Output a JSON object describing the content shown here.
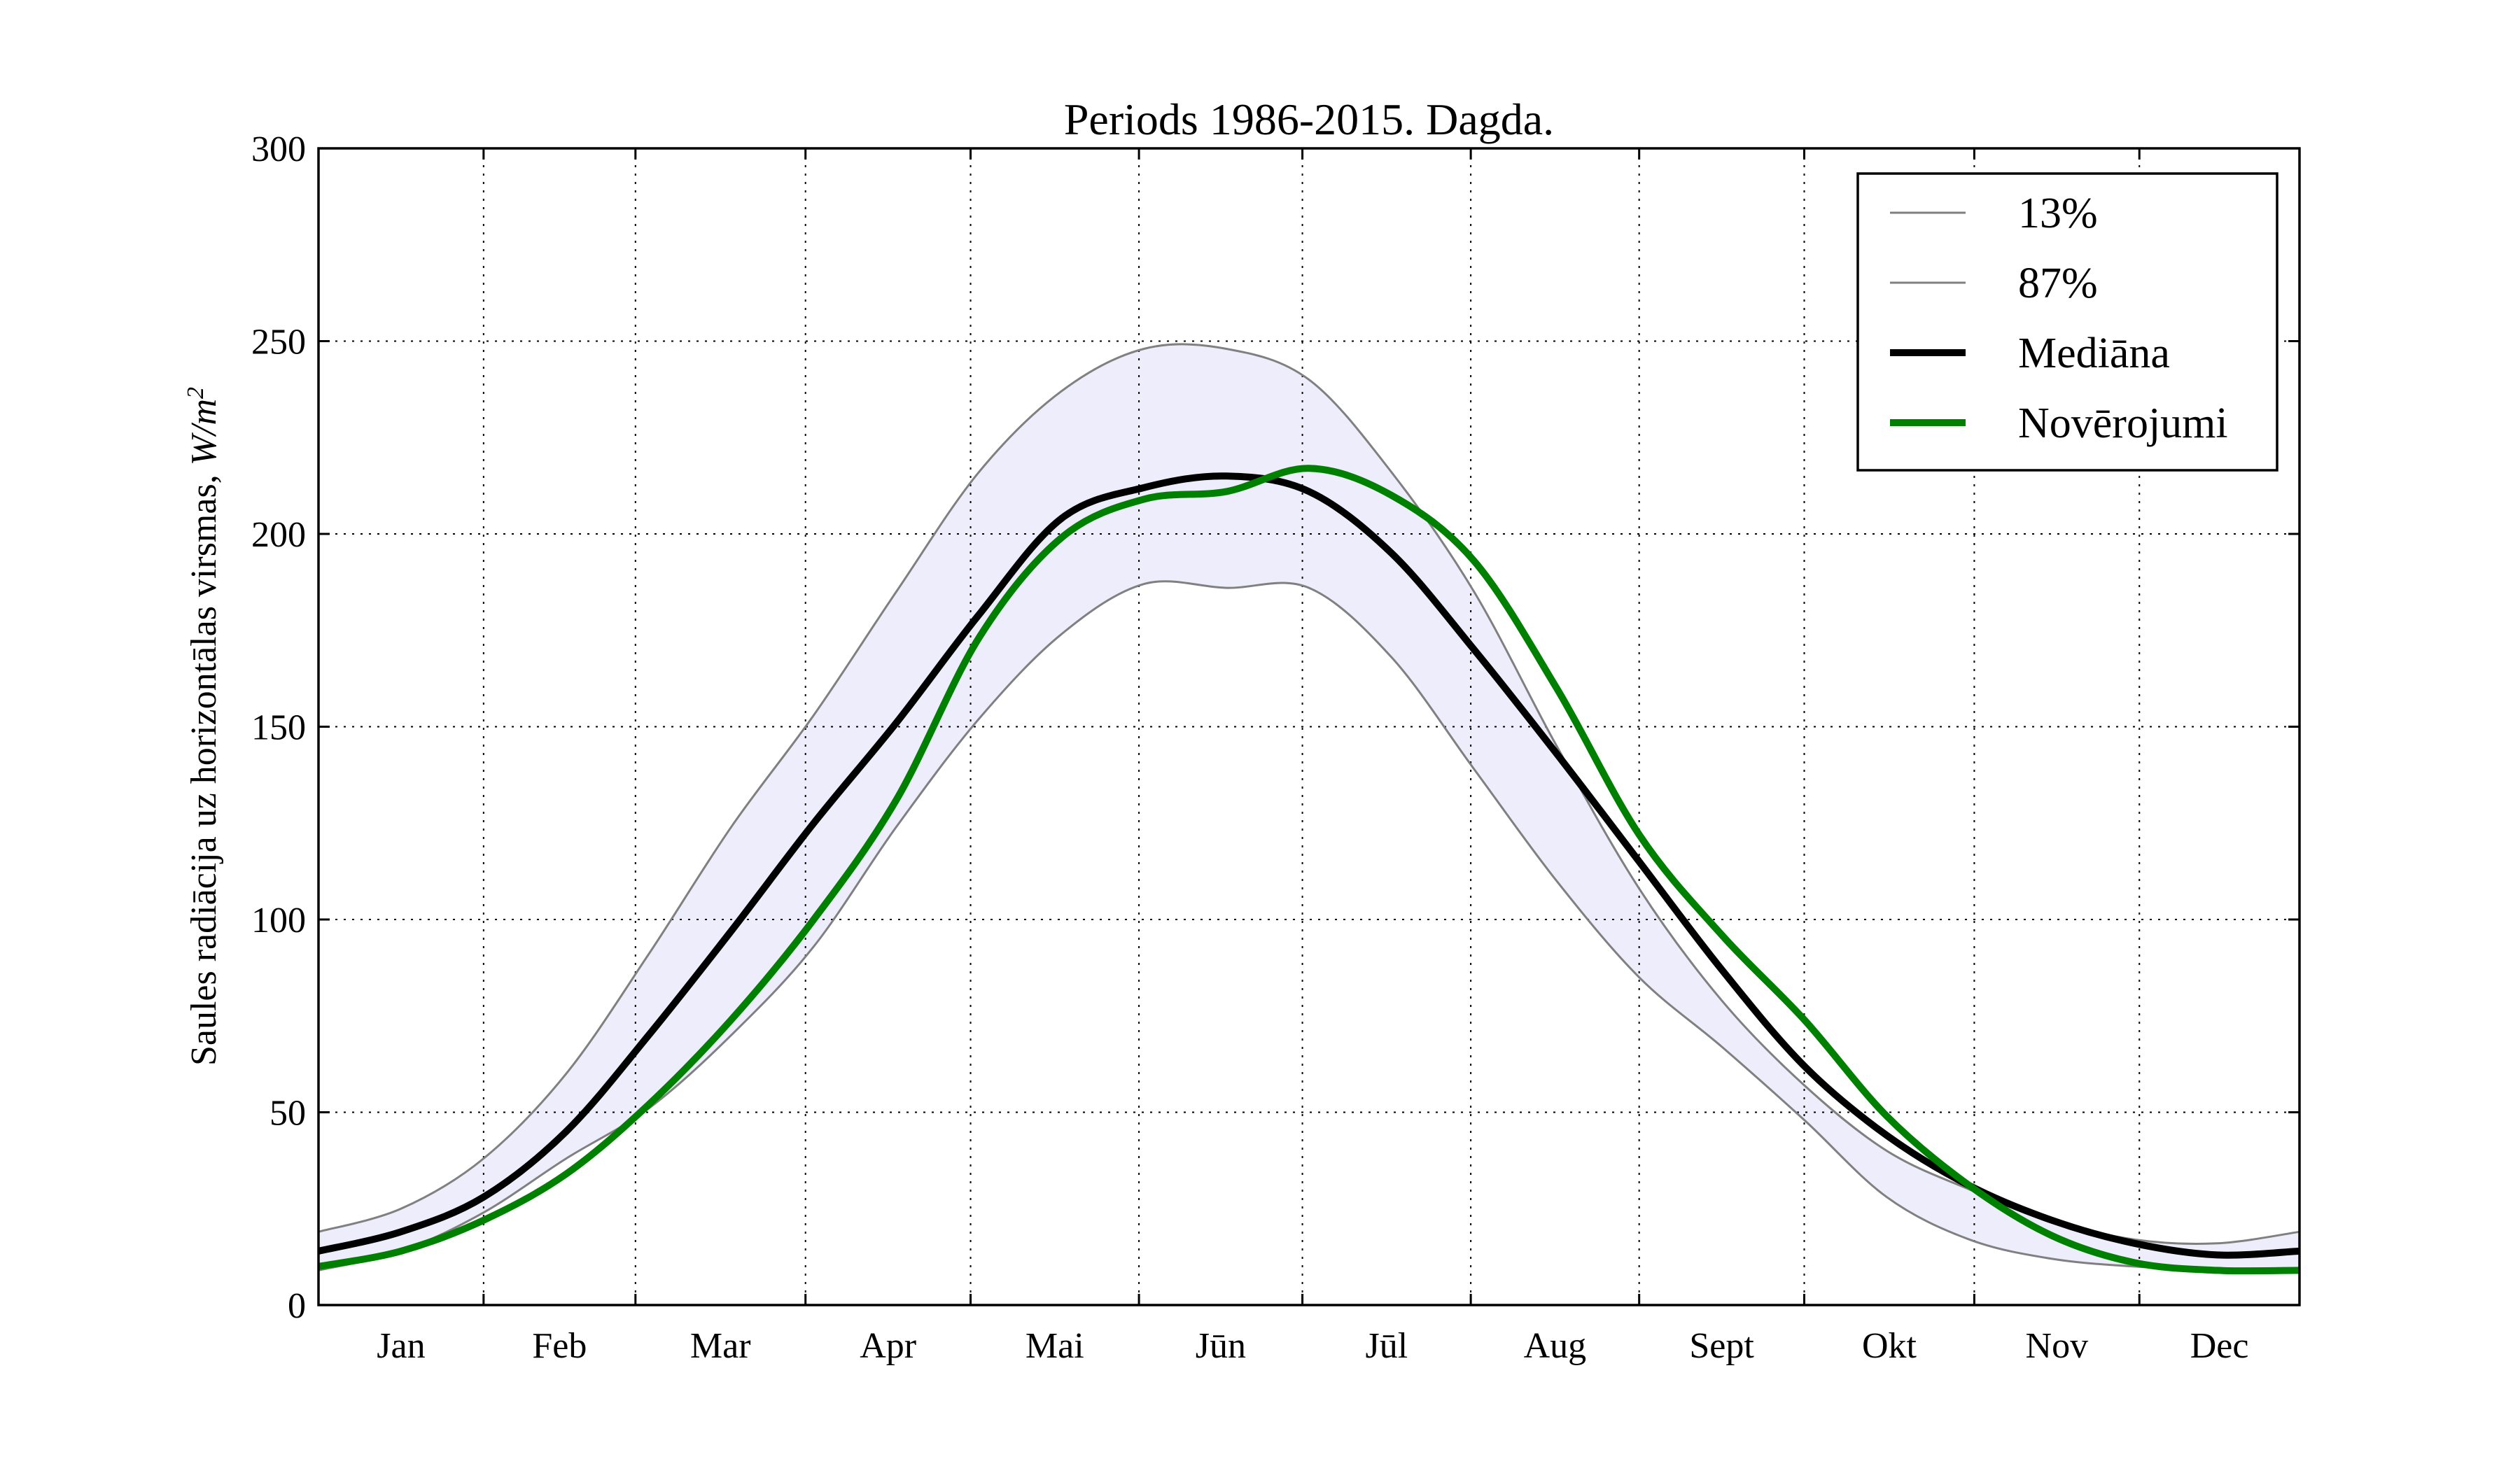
{
  "chart_data": {
    "type": "line",
    "title": "Periods 1986-2015. Dagda.",
    "ylabel": "Saules radiācija uz horizontālas virsmas,",
    "ylabel_unit": "W/m",
    "ylabel_unit_sup": "2",
    "xlabel": "",
    "ylim": [
      0,
      300
    ],
    "xlim": [
      0,
      12
    ],
    "y_ticks": [
      0,
      50,
      100,
      150,
      200,
      250,
      300
    ],
    "month_boundaries": [
      1.0,
      1.92,
      2.95,
      3.95,
      4.97,
      5.96,
      6.98,
      8.0,
      9.0,
      10.03,
      11.03
    ],
    "categories": [
      "Jan",
      "Feb",
      "Mar",
      "Apr",
      "Mai",
      "Jūn",
      "Jūl",
      "Aug",
      "Sept",
      "Okt",
      "Nov",
      "Dec"
    ],
    "grid": true,
    "legend_position": "top-right",
    "colors": {
      "band": "#ededfb",
      "percentile": "#808080",
      "median": "#000000",
      "observed": "#008000"
    },
    "x": [
      0,
      0.5,
      1,
      1.5,
      2,
      2.5,
      3,
      3.5,
      4,
      4.5,
      5,
      5.5,
      6,
      6.5,
      7,
      7.5,
      8,
      8.5,
      9,
      9.5,
      10,
      10.5,
      11,
      11.5,
      12
    ],
    "series": [
      {
        "name": "13%",
        "values": [
          19,
          25,
          38,
          60,
          91,
          124,
          153,
          185,
          216,
          237,
          248,
          248,
          240,
          216,
          185,
          145,
          108,
          79,
          57,
          40,
          30,
          22,
          17,
          16,
          19
        ]
      },
      {
        "name": "87%",
        "values": [
          9,
          14,
          24,
          38,
          51,
          70,
          93,
          124,
          152,
          174,
          187,
          186,
          186,
          168,
          139,
          110,
          85,
          67,
          48,
          28,
          17,
          12,
          10,
          9,
          9
        ]
      },
      {
        "name": "Mediāna",
        "values": [
          14,
          19,
          28,
          45,
          70,
          97,
          125,
          151,
          179,
          204,
          212,
          215,
          211,
          195,
          170,
          143,
          115,
          87,
          62,
          44,
          31,
          22,
          16,
          13,
          14
        ]
      },
      {
        "name": "Novērojumi",
        "values": [
          10,
          14,
          22,
          34,
          52,
          74,
          100,
          131,
          173,
          199,
          209,
          211,
          217,
          210,
          193,
          160,
          122,
          96,
          74,
          49,
          31,
          18,
          11,
          9,
          9
        ]
      }
    ]
  }
}
